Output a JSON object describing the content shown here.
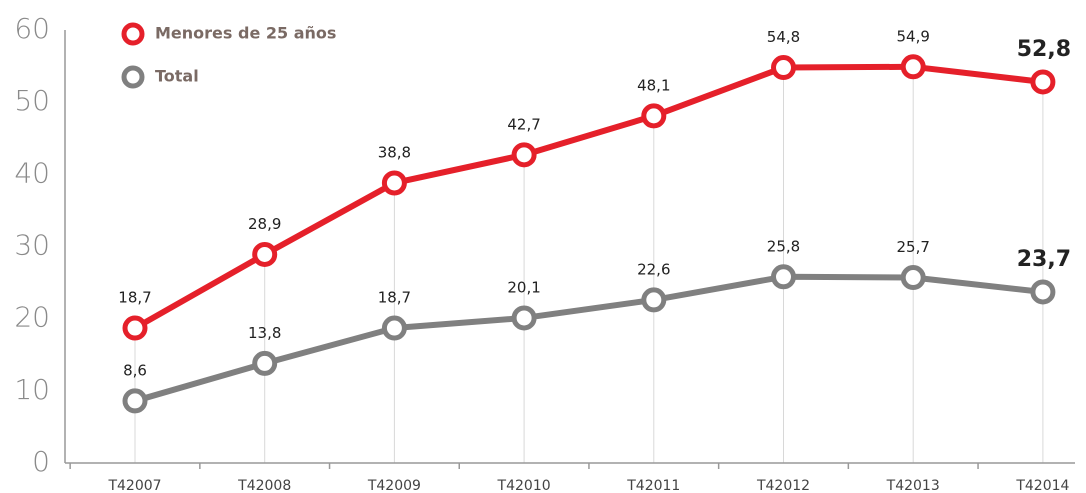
{
  "chart_data": {
    "type": "line",
    "categories": [
      "T42007",
      "T42008",
      "T42009",
      "T42010",
      "T42011",
      "T42012",
      "T42013",
      "T42014"
    ],
    "series": [
      {
        "name": "Menores de 25 años",
        "color": "#e5202a",
        "values": [
          18.7,
          28.9,
          38.8,
          42.7,
          48.1,
          54.8,
          54.9,
          52.8
        ],
        "value_labels": [
          "18,7",
          "28,9",
          "38,8",
          "42,7",
          "48,1",
          "54,8",
          "54,9",
          "52,8"
        ]
      },
      {
        "name": "Total",
        "color": "#808080",
        "values": [
          8.6,
          13.8,
          18.7,
          20.1,
          22.6,
          25.8,
          25.7,
          23.7
        ],
        "value_labels": [
          "8,6",
          "13,8",
          "18,7",
          "20,1",
          "22,6",
          "25,8",
          "25,7",
          "23,7"
        ]
      }
    ],
    "ylim": [
      0,
      60
    ],
    "yticks": [
      0,
      10,
      20,
      30,
      40,
      50,
      60
    ],
    "legend": "top-left"
  }
}
